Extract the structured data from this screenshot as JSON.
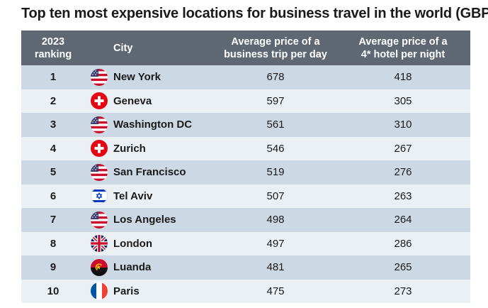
{
  "title": "Top ten most expensive locations for business travel in the world (GBP)",
  "header": {
    "rank_line1": "2023",
    "rank_line2": "ranking",
    "city": "City",
    "trip_line1": "Average price of a",
    "trip_line2": "business trip per day",
    "hotel_line1": "Average price of a",
    "hotel_line2": "4* hotel per night"
  },
  "chart_data": {
    "type": "table",
    "title": "Top ten most expensive locations for business travel in the world (GBP)",
    "columns": [
      "2023 ranking",
      "City",
      "Average price of a business trip per day",
      "Average price of a 4* hotel per night"
    ],
    "rows": [
      {
        "rank": "1",
        "flag": "usa-flag-icon",
        "city": "New York",
        "trip": "678",
        "hotel": "418"
      },
      {
        "rank": "2",
        "flag": "switzerland-flag-icon",
        "city": "Geneva",
        "trip": "597",
        "hotel": "305"
      },
      {
        "rank": "3",
        "flag": "usa-flag-icon",
        "city": "Washington DC",
        "trip": "561",
        "hotel": "310"
      },
      {
        "rank": "4",
        "flag": "switzerland-flag-icon",
        "city": "Zurich",
        "trip": "546",
        "hotel": "267"
      },
      {
        "rank": "5",
        "flag": "usa-flag-icon",
        "city": "San Francisco",
        "trip": "519",
        "hotel": "276"
      },
      {
        "rank": "6",
        "flag": "israel-flag-icon",
        "city": "Tel Aviv",
        "trip": "507",
        "hotel": "263"
      },
      {
        "rank": "7",
        "flag": "usa-flag-icon",
        "city": "Los Angeles",
        "trip": "498",
        "hotel": "264"
      },
      {
        "rank": "8",
        "flag": "uk-flag-icon",
        "city": "London",
        "trip": "497",
        "hotel": "286"
      },
      {
        "rank": "9",
        "flag": "angola-flag-icon",
        "city": "Luanda",
        "trip": "481",
        "hotel": "265"
      },
      {
        "rank": "10",
        "flag": "france-flag-icon",
        "city": "Paris",
        "trip": "475",
        "hotel": "273"
      }
    ]
  },
  "colors": {
    "header_bg": "#5f6773",
    "row_dark": "#ccd8e4",
    "row_light": "#ebf0f5"
  }
}
